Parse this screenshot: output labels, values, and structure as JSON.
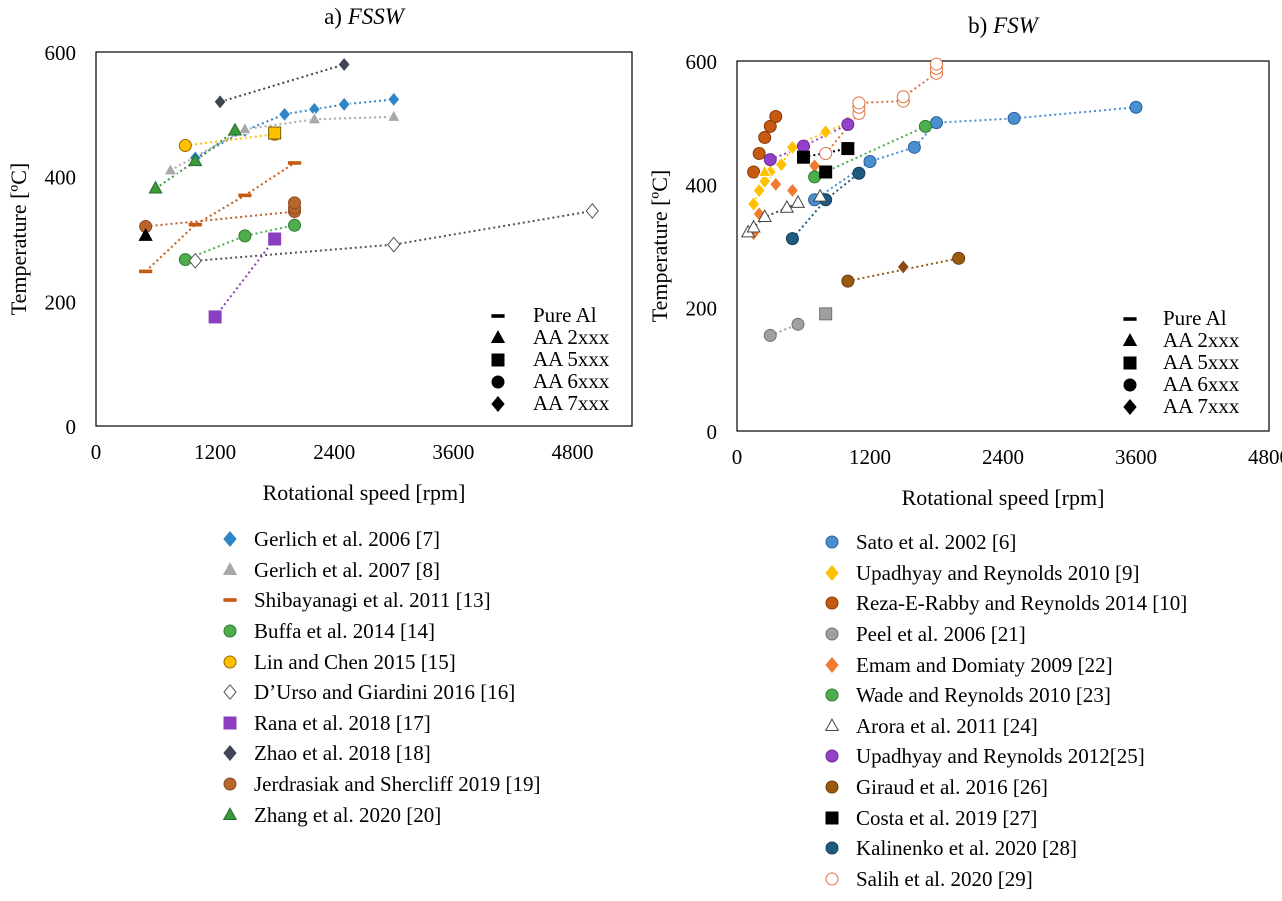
{
  "chart_data": [
    {
      "id": "a",
      "type": "scatter",
      "title_prefix": "a) ",
      "title_italic": "FSSW",
      "xlabel": "Rotational speed [rpm]",
      "ylabel": "Temperature [ºC]",
      "xlim": [
        0,
        5400
      ],
      "ylim": [
        0,
        600
      ],
      "xticks": [
        "0",
        "1200",
        "2400",
        "3600",
        "4800"
      ],
      "xtick_values": [
        0,
        1200,
        2400,
        3600,
        4800
      ],
      "yticks": [
        "0",
        "200",
        "400",
        "600"
      ],
      "ytick_values": [
        0,
        200,
        400,
        600
      ],
      "alloy_legend": [
        {
          "label": "Pure Al",
          "marker": "dash"
        },
        {
          "label": "AA 2xxx",
          "marker": "triangle"
        },
        {
          "label": "AA 5xxx",
          "marker": "square"
        },
        {
          "label": "AA 6xxx",
          "marker": "circle"
        },
        {
          "label": "AA 7xxx",
          "marker": "diamond"
        }
      ],
      "series": [
        {
          "name": "Gerlich et al. 2006 [7]",
          "marker": "diamond",
          "fill": "#2e86c8",
          "stroke": "#ffffff",
          "trend": true,
          "points": [
            [
              1000,
              430
            ],
            [
              1500,
              474
            ],
            [
              1900,
              500
            ],
            [
              2200,
              508
            ],
            [
              2500,
              516
            ],
            [
              3000,
              524
            ]
          ]
        },
        {
          "name": "Gerlich et al. 2007 [8]",
          "marker": "triangle",
          "fill": "#a8a8a8",
          "stroke": "#ffffff",
          "trend": true,
          "points": [
            [
              750,
              410
            ],
            [
              1500,
              476
            ],
            [
              2200,
              492
            ],
            [
              3000,
              496
            ]
          ]
        },
        {
          "name": "Shibayanagi et al. 2011 [13]",
          "marker": "dash",
          "fill": "#c55a11",
          "stroke": "#c55a11",
          "trend": true,
          "points": [
            [
              500,
              248
            ],
            [
              1000,
              323
            ],
            [
              1500,
              370
            ],
            [
              2000,
              422
            ]
          ]
        },
        {
          "name": "Buffa et al. 2014 [14]",
          "marker": "circle",
          "fill": "#4cae4c",
          "stroke": "#2f7a2f",
          "trend": true,
          "points": [
            [
              900,
              267
            ],
            [
              1500,
              305
            ],
            [
              2000,
              322
            ]
          ]
        },
        {
          "name": "Lin and Chen 2015 [15]",
          "marker": "circle",
          "fill": "#ffc000",
          "stroke": "#9a6a00",
          "trend": true,
          "points": [
            [
              900,
              450
            ],
            [
              1800,
              468
            ]
          ]
        },
        {
          "name": "D’Urso and Giardini 2016 [16]",
          "marker": "diamond",
          "fill": "#ffffff",
          "stroke": "#555555",
          "trend": true,
          "points": [
            [
              1000,
              265
            ],
            [
              3000,
              291
            ],
            [
              5000,
              345
            ]
          ]
        },
        {
          "name": "Rana et al. 2018 [17]",
          "marker": "square",
          "fill": "#8b3fc0",
          "stroke": "#8b3fc0",
          "trend": true,
          "points": [
            [
              1200,
              175
            ],
            [
              1800,
              300
            ]
          ]
        },
        {
          "name": "Zhao et al. 2018 [18]",
          "marker": "diamond",
          "fill": "#3d4652",
          "stroke": "#ffffff",
          "trend": true,
          "points": [
            [
              1250,
              520
            ],
            [
              2500,
              580
            ]
          ]
        },
        {
          "name": "Jerdrasiak and Shercliff 2019 [19]",
          "marker": "circle",
          "fill": "#b8652e",
          "stroke": "#8a4a20",
          "trend": true,
          "points": [
            [
              500,
              320
            ],
            [
              2000,
              344
            ],
            [
              2000,
              350
            ],
            [
              2000,
              358
            ]
          ]
        },
        {
          "name": "Zhang et al. 2020 [20]",
          "marker": "triangle",
          "fill": "#3a9a3a",
          "stroke": "#2a6e2a",
          "trend": true,
          "points": [
            [
              600,
              381
            ],
            [
              1000,
              425
            ],
            [
              1400,
              474
            ]
          ]
        },
        {
          "name": "",
          "marker": "triangle",
          "fill": "#000000",
          "stroke": "#000000",
          "trend": false,
          "inLegend": false,
          "points": [
            [
              500,
              305
            ]
          ]
        },
        {
          "name": "",
          "marker": "square",
          "fill": "#ffc000",
          "stroke": "#7a5a00",
          "trend": false,
          "inLegend": false,
          "points": [
            [
              1800,
              470
            ]
          ]
        }
      ]
    },
    {
      "id": "b",
      "type": "scatter",
      "title_prefix": "b) ",
      "title_italic": "FSW",
      "xlabel": "Rotational speed [rpm]",
      "ylabel": "Temperature [ºC]",
      "xlim": [
        0,
        4800
      ],
      "ylim": [
        0,
        600
      ],
      "xticks": [
        "0",
        "1200",
        "2400",
        "3600",
        "4800"
      ],
      "xtick_values": [
        0,
        1200,
        2400,
        3600,
        4800
      ],
      "yticks": [
        "0",
        "200",
        "400",
        "600"
      ],
      "ytick_values": [
        0,
        200,
        400,
        600
      ],
      "alloy_legend": [
        {
          "label": "Pure Al",
          "marker": "dash"
        },
        {
          "label": "AA 2xxx",
          "marker": "triangle"
        },
        {
          "label": "AA 5xxx",
          "marker": "square"
        },
        {
          "label": "AA 6xxx",
          "marker": "circle"
        },
        {
          "label": "AA 7xxx",
          "marker": "diamond"
        }
      ],
      "series": [
        {
          "name": "Sato et al. 2002 [6]",
          "marker": "circle",
          "fill": "#4a8fd0",
          "stroke": "#2a5f9a",
          "trend": true,
          "points": [
            [
              700,
              375
            ],
            [
              1200,
              437
            ],
            [
              1600,
              460
            ],
            [
              1800,
              500
            ],
            [
              2500,
              507
            ],
            [
              3600,
              525
            ]
          ]
        },
        {
          "name": "Upadhyay and Reynolds 2010 [9]",
          "marker": "diamond",
          "fill": "#ffc000",
          "stroke": "#ffffff",
          "trend": true,
          "points": [
            [
              150,
              368
            ],
            [
              200,
              390
            ],
            [
              250,
              405
            ],
            [
              300,
              420
            ],
            [
              400,
              432
            ],
            [
              500,
              460
            ],
            [
              800,
              485
            ],
            [
              1000,
              500
            ]
          ]
        },
        {
          "name": "Reza-E-Rabby and Reynolds 2014 [10]",
          "marker": "circle",
          "fill": "#c55a11",
          "stroke": "#8a3a08",
          "trend": false,
          "points": [
            [
              150,
              420
            ],
            [
              200,
              450
            ],
            [
              250,
              476
            ],
            [
              300,
              494
            ],
            [
              350,
              510
            ]
          ]
        },
        {
          "name": "Peel et al. 2006 [21]",
          "marker": "circle",
          "fill": "#a0a0a0",
          "stroke": "#707070",
          "trend": true,
          "points": [
            [
              300,
              155
            ],
            [
              550,
              173
            ]
          ]
        },
        {
          "name": "Emam and Domiaty 2009 [22]",
          "marker": "diamond",
          "fill": "#f07a30",
          "stroke": "#ffffff",
          "trend": false,
          "points": [
            [
              150,
              320
            ],
            [
              200,
              352
            ],
            [
              350,
              400
            ],
            [
              500,
              390
            ],
            [
              700,
              430
            ]
          ]
        },
        {
          "name": "Wade and Reynolds 2010 [23]",
          "marker": "circle",
          "fill": "#4cae4c",
          "stroke": "#2f7a2f",
          "trend": true,
          "points": [
            [
              700,
              412
            ],
            [
              1700,
              494
            ]
          ]
        },
        {
          "name": "Arora et al. 2011 [24]",
          "marker": "triangle",
          "fill": "#ffffff",
          "stroke": "#444444",
          "trend": true,
          "points": [
            [
              100,
              322
            ],
            [
              150,
              330
            ],
            [
              250,
              347
            ],
            [
              450,
              362
            ],
            [
              550,
              370
            ]
          ]
        },
        {
          "name": "Upadhyay and Reynolds 2012[25]",
          "marker": "circle",
          "fill": "#9440c8",
          "stroke": "#6a2a90",
          "trend": true,
          "points": [
            [
              300,
              440
            ],
            [
              600,
              462
            ],
            [
              1000,
              497
            ]
          ]
        },
        {
          "name": "Giraud et al. 2016 [26]",
          "marker": "circle",
          "fill": "#9a5a10",
          "stroke": "#6a3a08",
          "trend": true,
          "points": [
            [
              1000,
              243
            ],
            [
              2000,
              280
            ]
          ]
        },
        {
          "name": "Costa et al. 2019 [27]",
          "marker": "square",
          "fill": "#000000",
          "stroke": "#000000",
          "trend": true,
          "points": [
            [
              600,
              444
            ],
            [
              1000,
              458
            ]
          ]
        },
        {
          "name": "Kalinenko et al. 2020 [28]",
          "marker": "circle",
          "fill": "#1f5a80",
          "stroke": "#103a58",
          "trend": true,
          "points": [
            [
              500,
              312
            ],
            [
              800,
              375
            ],
            [
              1100,
              418
            ]
          ]
        },
        {
          "name": "Salih et al. 2020 [29]",
          "marker": "circle",
          "fill": "#ffffff",
          "stroke": "#e07040",
          "trend": true,
          "points": [
            [
              800,
              450
            ],
            [
              1100,
              515
            ],
            [
              1100,
              525
            ],
            [
              1100,
              532
            ],
            [
              1500,
              535
            ],
            [
              1500,
              542
            ],
            [
              1800,
              580
            ],
            [
              1800,
              588
            ],
            [
              1800,
              595
            ]
          ]
        },
        {
          "name": "",
          "marker": "square",
          "fill": "#a0a0a0",
          "stroke": "#707070",
          "trend": false,
          "inLegend": false,
          "points": [
            [
              800,
              190
            ]
          ]
        },
        {
          "name": "",
          "marker": "diamond",
          "fill": "#8a4a10",
          "stroke": "#ffffff",
          "trend": false,
          "inLegend": false,
          "points": [
            [
              1500,
              266
            ]
          ]
        },
        {
          "name": "",
          "marker": "square",
          "fill": "#000000",
          "stroke": "#000000",
          "trend": false,
          "inLegend": false,
          "points": [
            [
              800,
              420
            ]
          ]
        },
        {
          "name": "",
          "marker": "triangle",
          "fill": "#ffffff",
          "stroke": "#444444",
          "trend": false,
          "inLegend": false,
          "points": [
            [
              750,
              380
            ]
          ]
        },
        {
          "name": "",
          "marker": "triangle",
          "fill": "#ffc000",
          "stroke": "#ffffff",
          "trend": false,
          "inLegend": false,
          "points": [
            [
              250,
              420
            ]
          ]
        }
      ]
    }
  ]
}
